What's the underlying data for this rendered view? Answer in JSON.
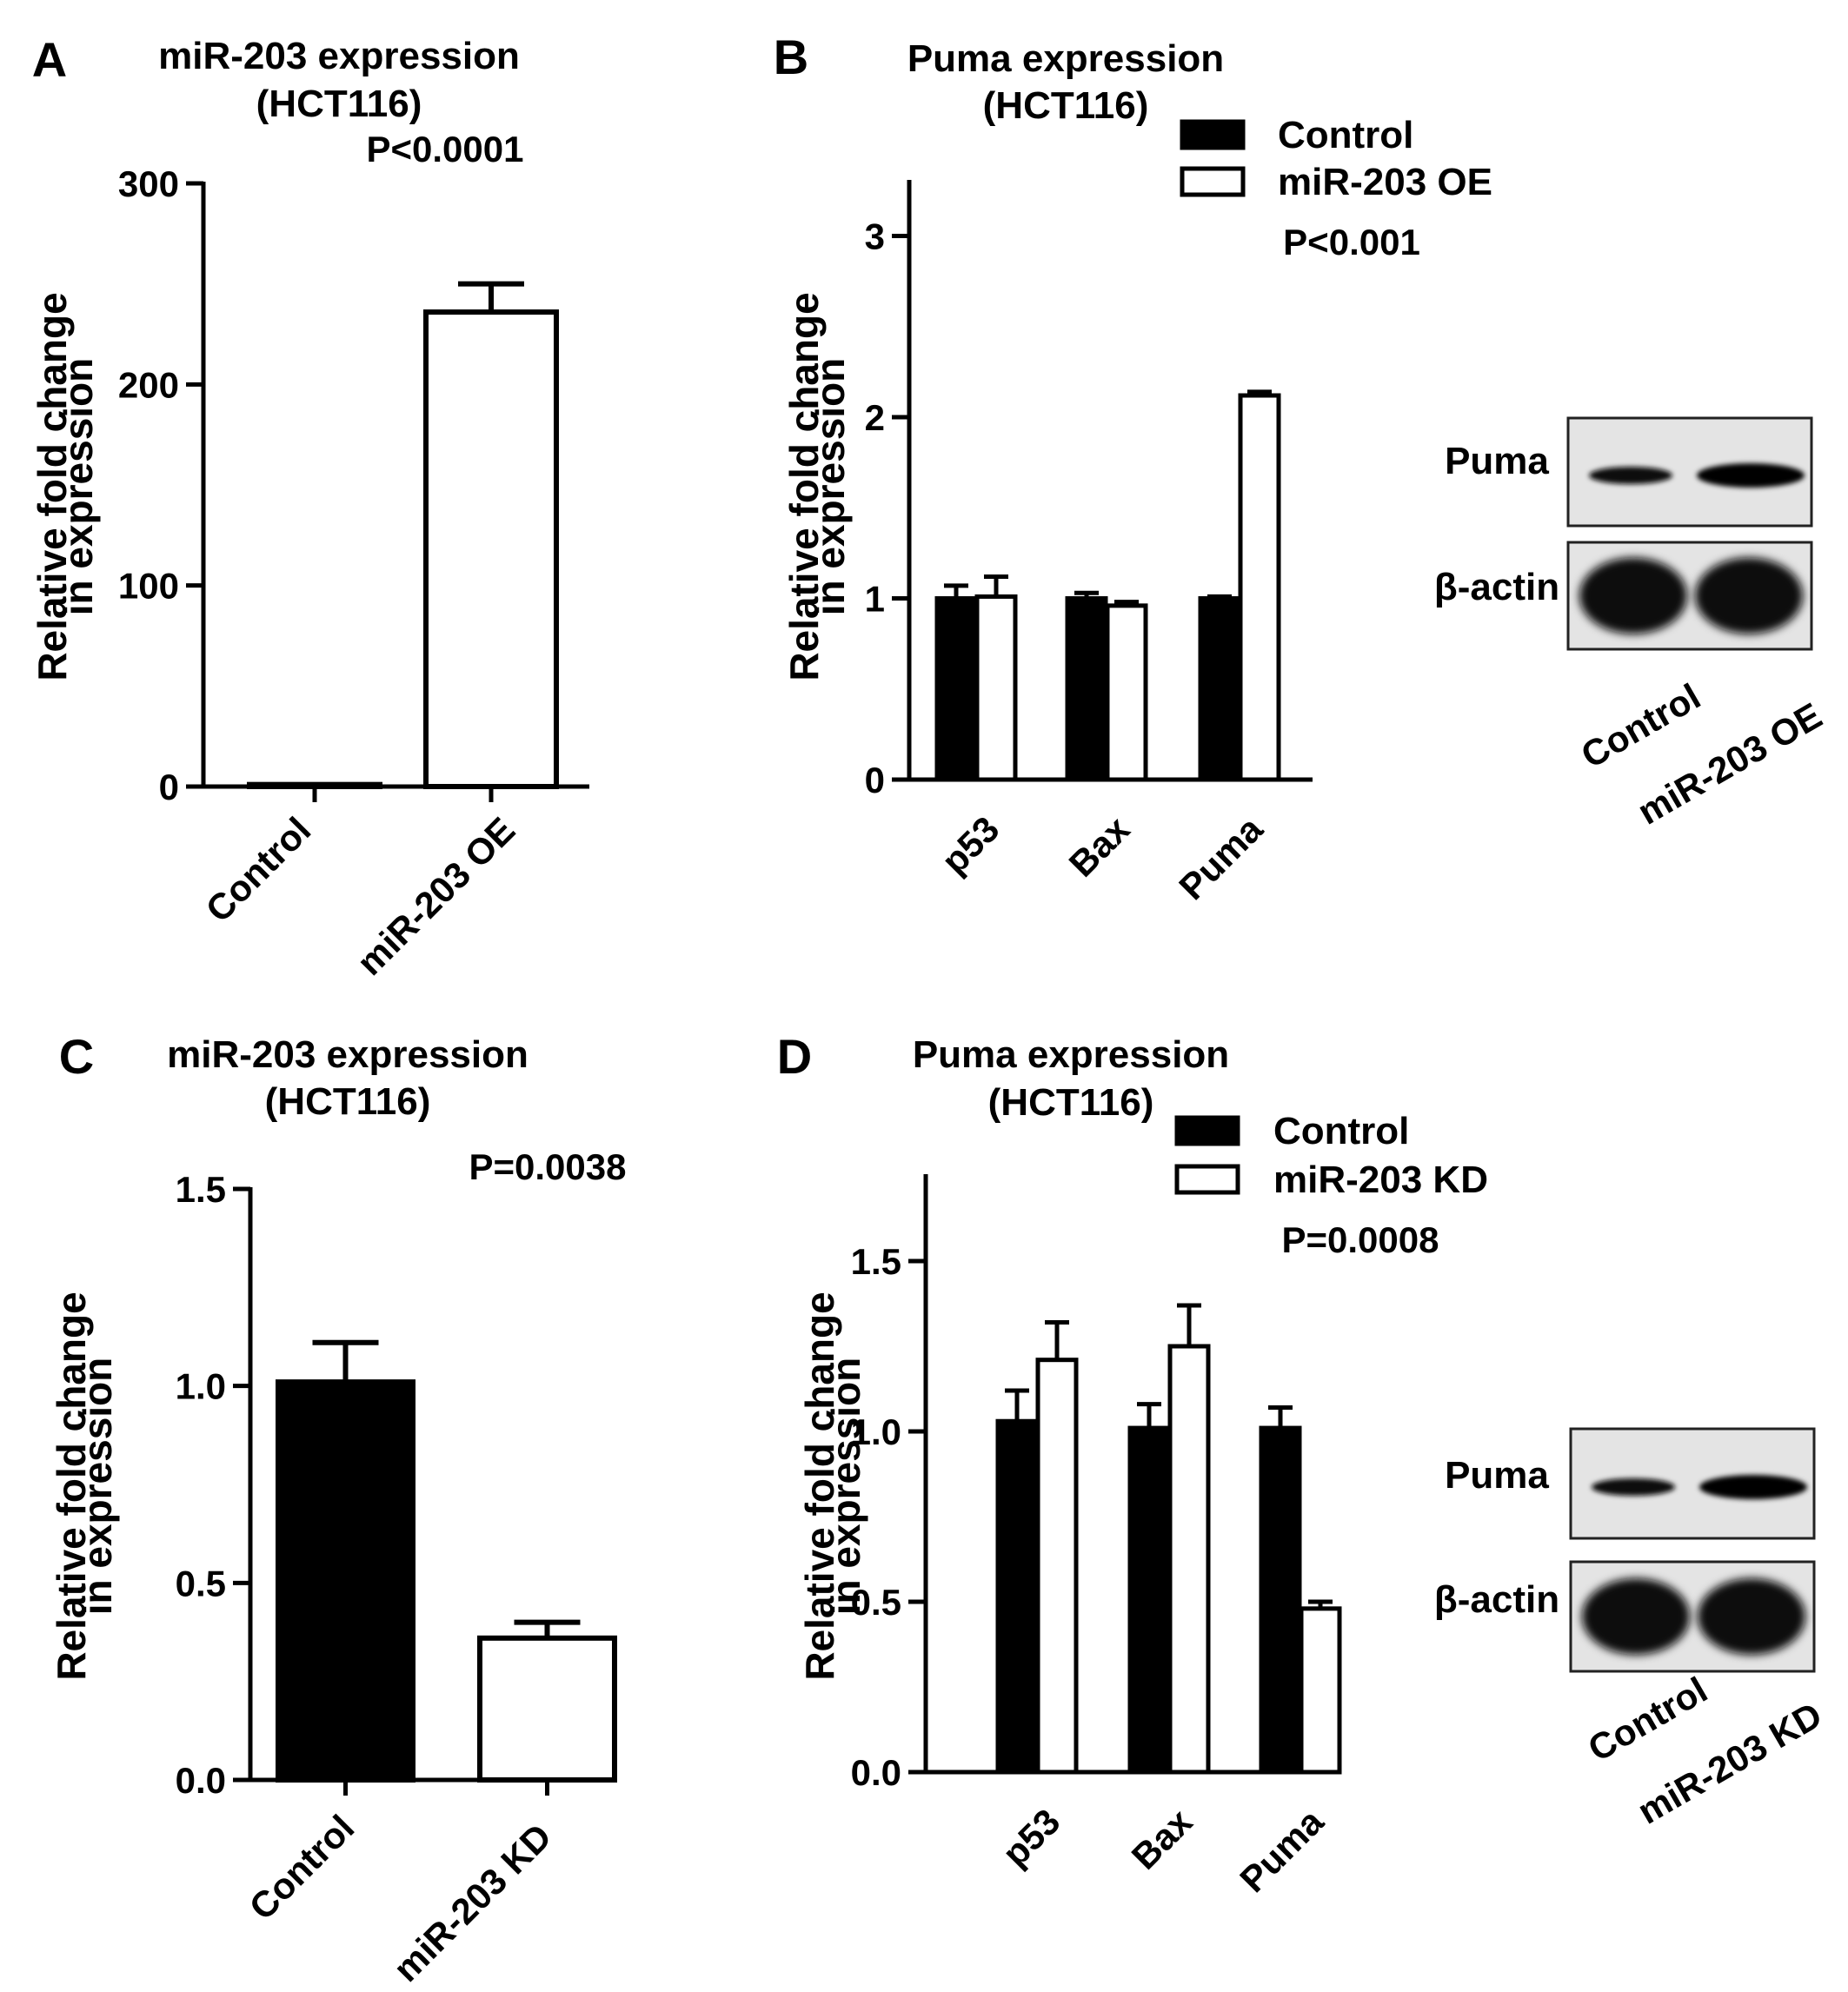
{
  "chart_data": [
    {
      "panel": "A",
      "type": "bar",
      "title": "miR-203 expression",
      "subtitle": "(HCT116)",
      "annotation": "P<0.0001",
      "ylabel": [
        "Relative fold change",
        "in expression"
      ],
      "ylim": [
        0,
        300
      ],
      "yticks": [
        "0",
        "100",
        "200",
        "300"
      ],
      "categories": [
        "Control",
        "miR-203 OE"
      ],
      "values": [
        1,
        236
      ],
      "errors": [
        0,
        14
      ],
      "fills": [
        "#000000",
        "#ffffff"
      ]
    },
    {
      "panel": "B",
      "type": "bar",
      "title": "Puma expression",
      "subtitle": "(HCT116)",
      "annotation": "P<0.001",
      "ylabel": [
        "Relative fold change",
        "in expression"
      ],
      "ylim": [
        0,
        3.3
      ],
      "yticks": [
        "0",
        "1",
        "2",
        "3"
      ],
      "categories": [
        "p53",
        "Bax",
        "Puma"
      ],
      "series": [
        {
          "name": "Control",
          "values": [
            1.0,
            1.0,
            1.0
          ],
          "errors": [
            0.07,
            0.03,
            0.01
          ],
          "fill": "#000000"
        },
        {
          "name": "miR-203 OE",
          "values": [
            1.01,
            0.96,
            2.12
          ],
          "errors": [
            0.11,
            0.02,
            0.02
          ],
          "fill": "#ffffff"
        }
      ],
      "blot": {
        "rows": [
          "Puma",
          "β-actin"
        ],
        "lanes": [
          "Control",
          "miR-203 OE"
        ]
      }
    },
    {
      "panel": "C",
      "type": "bar",
      "title": "miR-203 expression",
      "subtitle": "(HCT116)",
      "annotation": "P=0.0038",
      "ylabel": [
        "Relative fold change",
        "in expression"
      ],
      "ylim": [
        0,
        1.5
      ],
      "yticks": [
        "0.0",
        "0.5",
        "1.0",
        "1.5"
      ],
      "categories": [
        "Control",
        "miR-203 KD"
      ],
      "values": [
        1.01,
        0.36
      ],
      "errors": [
        0.1,
        0.04
      ],
      "fills": [
        "#000000",
        "#ffffff"
      ]
    },
    {
      "panel": "D",
      "type": "bar",
      "title": "Puma expression",
      "subtitle": "(HCT116)",
      "annotation": "P=0.0008",
      "ylabel": [
        "Relative fold change",
        "in expression"
      ],
      "ylim": [
        0,
        1.75
      ],
      "yticks": [
        "0.0",
        "0.5",
        "1.0",
        "1.5"
      ],
      "categories": [
        "p53",
        "Bax",
        "Puma"
      ],
      "series": [
        {
          "name": "Control",
          "values": [
            1.03,
            1.01,
            1.01
          ],
          "errors": [
            0.09,
            0.07,
            0.06
          ],
          "fill": "#000000"
        },
        {
          "name": "miR-203 KD",
          "values": [
            1.21,
            1.25,
            0.48
          ],
          "errors": [
            0.11,
            0.12,
            0.02
          ],
          "fill": "#ffffff"
        }
      ],
      "blot": {
        "rows": [
          "Puma",
          "β-actin"
        ],
        "lanes": [
          "Control",
          "miR-203 KD"
        ]
      }
    }
  ]
}
